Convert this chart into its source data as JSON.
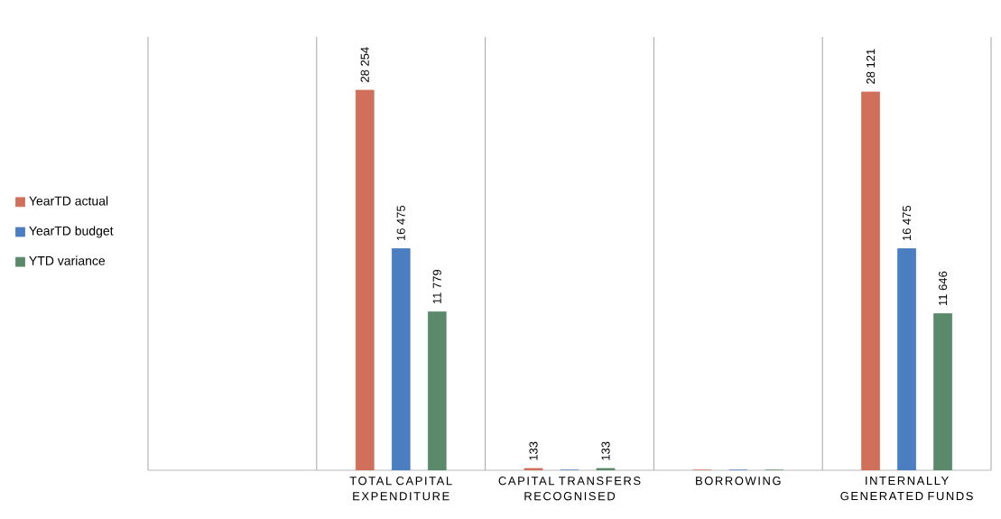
{
  "chart_data": {
    "type": "bar",
    "categories": [
      null,
      "TOTAL CAPITAL EXPENDITURE",
      "CAPITAL TRANSFERS RECOGNISED",
      "BORROWING",
      "INTERNALLY GENERATED FUNDS"
    ],
    "series": [
      {
        "name": "YearTD actual",
        "color": "#d0705a",
        "values": [
          null,
          28254,
          133,
          0,
          28121
        ],
        "value_labels": [
          null,
          "28 254",
          "133",
          null,
          "28 121"
        ]
      },
      {
        "name": "YearTD budget",
        "color": "#4a7ec0",
        "values": [
          null,
          16475,
          0,
          0,
          16475
        ],
        "value_labels": [
          null,
          "16 475",
          null,
          null,
          "16 475"
        ]
      },
      {
        "name": "YTD variance",
        "color": "#5a8a6a",
        "values": [
          null,
          11779,
          133,
          0,
          11646
        ],
        "value_labels": [
          null,
          "11 779",
          "133",
          null,
          "11 646"
        ]
      }
    ],
    "grid": "x",
    "legend": "left"
  }
}
